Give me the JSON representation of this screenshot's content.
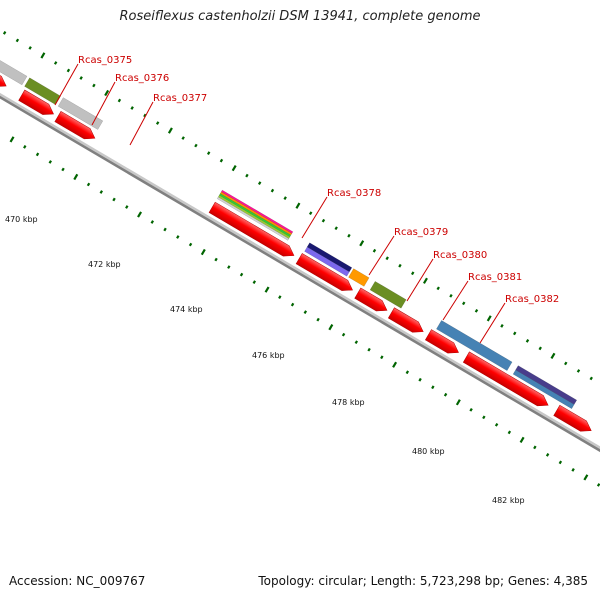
{
  "title": "Roseiflexus castenholzii DSM 13941, complete genome",
  "footer": {
    "accession": "Accession: NC_009767",
    "topology": "Topology: circular; Length: 5,723,298 bp; Genes: 4,385"
  },
  "genes": [
    {
      "label": "Rcas_0375",
      "color": "#c0c0c0"
    },
    {
      "label": "Rcas_0376",
      "color": "#6b8e23"
    },
    {
      "label": "Rcas_0377",
      "color": "#c0c0c0"
    },
    {
      "label": "Rcas_0378",
      "colors": [
        "#ff1493",
        "#ff8c00",
        "#32cd32",
        "#9acd32",
        "#d3d3d3"
      ]
    },
    {
      "label": "Rcas_0379",
      "colors": [
        "#191970",
        "#7b68ee"
      ]
    },
    {
      "label": "Rcas_0380",
      "color": "#ff9900"
    },
    {
      "label": "Rcas_0381",
      "color": "#6b8e23"
    },
    {
      "label": "Rcas_0382",
      "color": "#4682b4"
    }
  ],
  "scale_labels": [
    "470 kbp",
    "472 kbp",
    "474 kbp",
    "476 kbp",
    "478 kbp",
    "480 kbp",
    "482 kbp"
  ],
  "colors": {
    "cds": "#ff0000",
    "backbone": "#808080",
    "ticks": "#006400",
    "label_text": "#cc0000",
    "label_line": "#cc0000",
    "blue_gene": "#4682b4",
    "purple_gene": "#483d8b"
  }
}
